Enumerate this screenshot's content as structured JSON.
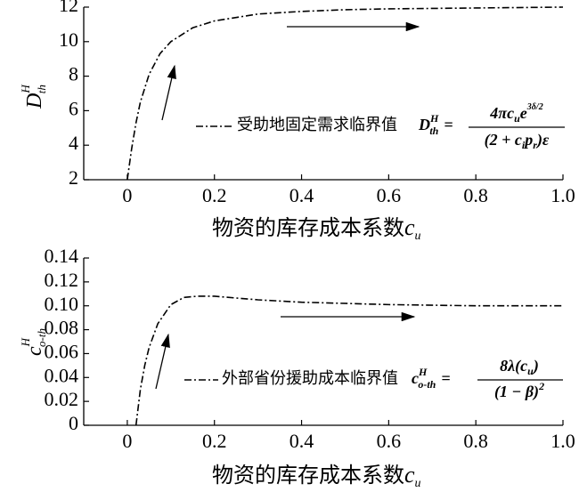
{
  "chart_data": [
    {
      "type": "line",
      "xlabel": "物资的库存成本系数",
      "xlabel_symbol": "c",
      "xlabel_subscript": "u",
      "ylabel": "D",
      "ylabel_sup": "H",
      "ylabel_sub": "th",
      "x": [
        0,
        0.01,
        0.02,
        0.03,
        0.05,
        0.075,
        0.1,
        0.15,
        0.2,
        0.3,
        0.4,
        0.5,
        0.6,
        0.8,
        1.0
      ],
      "series": [
        {
          "name": "受助地固定需求临界值",
          "color": "#000000",
          "values": [
            2,
            3.8,
            5.3,
            6.5,
            8.1,
            9.3,
            10.0,
            10.8,
            11.2,
            11.6,
            11.75,
            11.85,
            11.9,
            11.95,
            12.0
          ]
        }
      ],
      "formula": {
        "lhs": [
          "D",
          "H",
          "th",
          "="
        ],
        "numerator": [
          "4πc",
          "u",
          "e",
          "3δ/2"
        ],
        "denominator": [
          "(2 + c",
          "i",
          "p",
          "r",
          ")ε"
        ]
      },
      "xlim": [
        -0.1,
        1.0
      ],
      "xticks": [
        0,
        0.2,
        0.4,
        0.6,
        0.8,
        {
          "value": 1,
          "label": "1.0"
        }
      ],
      "ylim": [
        2,
        12
      ],
      "yticks": [
        2,
        4,
        6,
        8,
        10,
        12
      ]
    },
    {
      "type": "line",
      "xlabel": "物资的库存成本系数",
      "xlabel_symbol": "c",
      "xlabel_subscript": "u",
      "ylabel": "c",
      "ylabel_sup": "H",
      "ylabel_sub": "o-th",
      "x": [
        0.02,
        0.03,
        0.04,
        0.05,
        0.07,
        0.1,
        0.13,
        0.16,
        0.2,
        0.3,
        0.4,
        0.6,
        0.8,
        1.0
      ],
      "series": [
        {
          "name": "外部省份援助成本临界值",
          "color": "#000000",
          "values": [
            0,
            0.03,
            0.05,
            0.065,
            0.085,
            0.101,
            0.107,
            0.108,
            0.108,
            0.105,
            0.103,
            0.101,
            0.1,
            0.1
          ]
        }
      ],
      "formula": {
        "lhs": [
          "c",
          "H",
          "o-th",
          "="
        ],
        "numerator": [
          "8λ(c",
          "u",
          ")"
        ],
        "denominator": [
          "(1 − β)",
          "2"
        ]
      },
      "xlim": [
        -0.1,
        1.0
      ],
      "xticks": [
        0,
        0.2,
        0.4,
        0.6,
        0.8,
        {
          "value": 1,
          "label": "1.0"
        }
      ],
      "ylim": [
        0,
        0.14
      ],
      "yticks": [
        0,
        0.02,
        0.04,
        0.06,
        0.08,
        {
          "value": 0.1,
          "label": "0.10"
        },
        0.12,
        0.14
      ]
    }
  ]
}
